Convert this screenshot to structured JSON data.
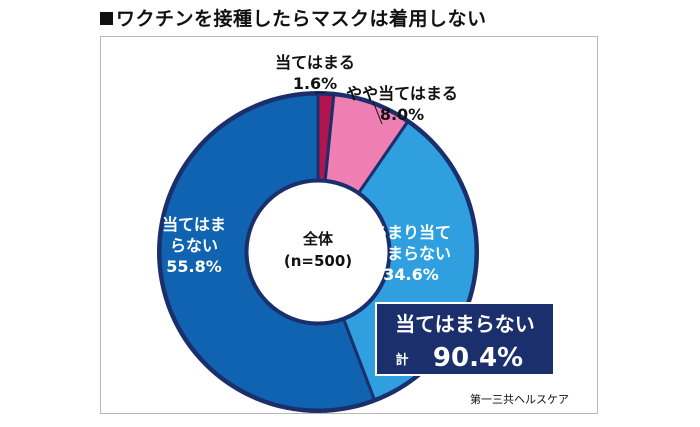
{
  "title": "ワクチンを接種したらマスクは着用しない",
  "source": "第一三共ヘルスケア",
  "colors": {
    "navy": "#1a2f6b",
    "text_dark": "#111111",
    "white": "#ffffff"
  },
  "chart_data": {
    "type": "pie",
    "center_label": {
      "line1": "全体",
      "line2": "(n=500)"
    },
    "unit": "%",
    "slices": [
      {
        "label_lines": [
          "当てはまる"
        ],
        "value": 1.6,
        "color": "#b0154e",
        "label_dark": true
      },
      {
        "label_lines": [
          "やや当てはまる"
        ],
        "value": 8.0,
        "color": "#ef7fb2",
        "label_dark": true
      },
      {
        "label_lines": [
          "あまり当て",
          "はまらない"
        ],
        "value": 34.6,
        "color": "#2f9fe0",
        "label_dark": false
      },
      {
        "label_lines": [
          "当てはま",
          "らない"
        ],
        "value": 55.8,
        "color": "#1063b0",
        "label_dark": false
      }
    ],
    "total_box": {
      "title": "当てはまらない",
      "prefix": "計",
      "value": "90.4%"
    }
  }
}
